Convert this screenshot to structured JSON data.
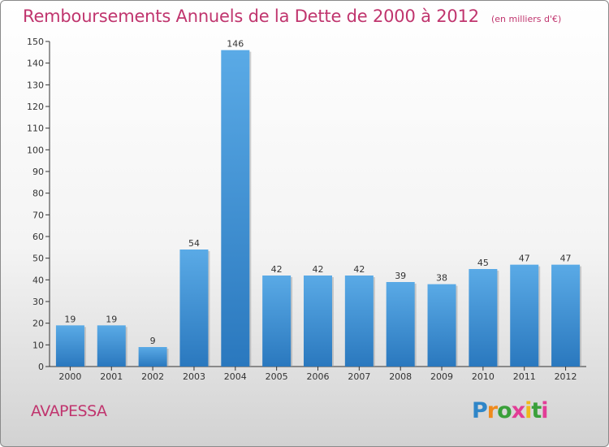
{
  "chart_data": {
    "type": "bar",
    "title": "Remboursements Annuels de la Dette de 2000 à 2012",
    "subtitle": "(en milliers d'€)",
    "xlabel": "",
    "ylabel": "",
    "categories": [
      "2000",
      "2001",
      "2002",
      "2003",
      "2004",
      "2005",
      "2006",
      "2007",
      "2008",
      "2009",
      "2010",
      "2011",
      "2012"
    ],
    "values": [
      19,
      19,
      9,
      54,
      146,
      42,
      42,
      42,
      39,
      38,
      45,
      47,
      47
    ],
    "ylim": [
      0,
      150
    ],
    "yticks": [
      0,
      10,
      20,
      30,
      40,
      50,
      60,
      70,
      80,
      90,
      100,
      110,
      120,
      130,
      140,
      150
    ],
    "grid": false,
    "legend": "none",
    "bar_color_top": "#5aaae6",
    "bar_color_bottom": "#2a78be"
  },
  "footer": {
    "commune": "AVAPESSA",
    "brand_letters": [
      "P",
      "r",
      "o",
      "x",
      "i",
      "t",
      "i"
    ],
    "brand_colors": [
      "#2f86c8",
      "#ef8a1c",
      "#3aa03a",
      "#e23d96",
      "#f0b81b",
      "#3aa03a",
      "#e23d96"
    ]
  },
  "colors": {
    "title": "#c0356e",
    "axis": "#333333"
  }
}
